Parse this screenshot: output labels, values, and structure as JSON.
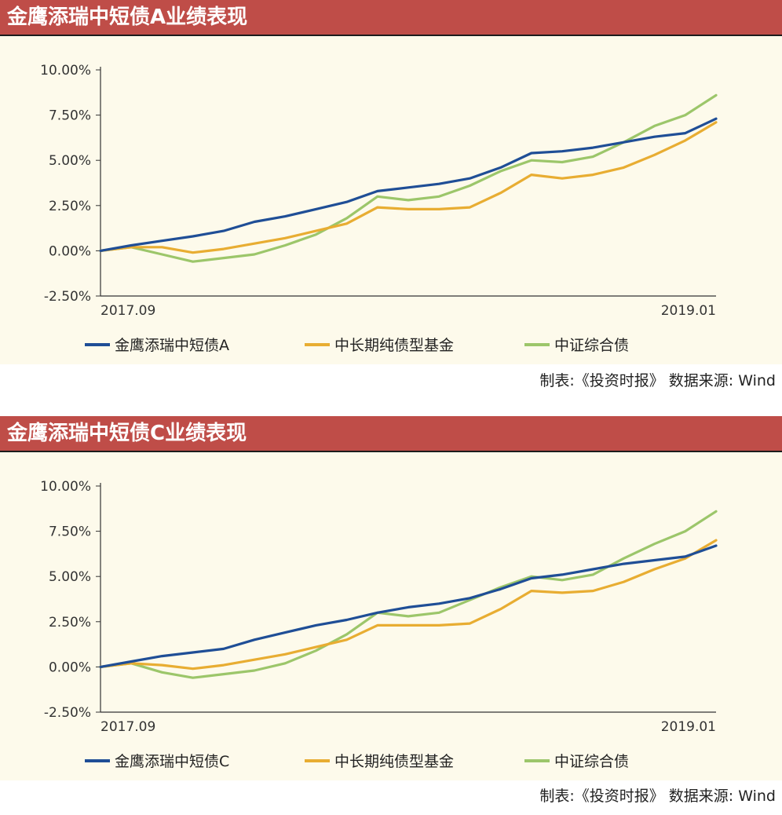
{
  "panels": [
    {
      "title": "金鹰添瑞中短债A业绩表现",
      "source": "制表:《投资时报》  数据来源: Wind",
      "chart_data": {
        "type": "line",
        "x_start_label": "2017.09",
        "x_end_label": "2019.01",
        "x": [
          0,
          5,
          10,
          15,
          20,
          25,
          30,
          35,
          40,
          45,
          50,
          55,
          60,
          65,
          70,
          75,
          80,
          85,
          90,
          95,
          100
        ],
        "y_ticks": [
          "10.00%",
          "7.50%",
          "5.00%",
          "2.50%",
          "0.00%",
          "-2.50%"
        ],
        "ylim": [
          -2.5,
          10
        ],
        "grid": false,
        "legend_position": "bottom",
        "series": [
          {
            "name": "金鹰添瑞中短债A",
            "color": "#1f4e96",
            "values": [
              0.0,
              0.3,
              0.55,
              0.8,
              1.1,
              1.6,
              1.9,
              2.3,
              2.7,
              3.3,
              3.5,
              3.7,
              4.0,
              4.6,
              5.4,
              5.5,
              5.7,
              6.0,
              6.3,
              6.5,
              7.3
            ]
          },
          {
            "name": "中长期纯债型基金",
            "color": "#e8ad32",
            "values": [
              0.0,
              0.2,
              0.2,
              -0.1,
              0.1,
              0.4,
              0.7,
              1.1,
              1.5,
              2.4,
              2.3,
              2.3,
              2.4,
              3.2,
              4.2,
              4.0,
              4.2,
              4.6,
              5.3,
              6.1,
              7.1
            ]
          },
          {
            "name": "中证综合债",
            "color": "#9cc66a",
            "values": [
              0.0,
              0.2,
              -0.2,
              -0.6,
              -0.4,
              -0.2,
              0.3,
              0.9,
              1.8,
              3.0,
              2.8,
              3.0,
              3.6,
              4.4,
              5.0,
              4.9,
              5.2,
              6.0,
              6.9,
              7.5,
              8.6
            ]
          }
        ]
      }
    },
    {
      "title": "金鹰添瑞中短债C业绩表现",
      "source": "制表:《投资时报》  数据来源: Wind",
      "chart_data": {
        "type": "line",
        "x_start_label": "2017.09",
        "x_end_label": "2019.01",
        "x": [
          0,
          5,
          10,
          15,
          20,
          25,
          30,
          35,
          40,
          45,
          50,
          55,
          60,
          65,
          70,
          75,
          80,
          85,
          90,
          95,
          100
        ],
        "y_ticks": [
          "10.00%",
          "7.50%",
          "5.00%",
          "2.50%",
          "0.00%",
          "-2.50%"
        ],
        "ylim": [
          -2.5,
          10
        ],
        "grid": false,
        "legend_position": "bottom",
        "series": [
          {
            "name": "金鹰添瑞中短债C",
            "color": "#1f4e96",
            "values": [
              0.0,
              0.3,
              0.6,
              0.8,
              1.0,
              1.5,
              1.9,
              2.3,
              2.6,
              3.0,
              3.3,
              3.5,
              3.8,
              4.3,
              4.9,
              5.1,
              5.4,
              5.7,
              5.9,
              6.1,
              6.7
            ]
          },
          {
            "name": "中长期纯债型基金",
            "color": "#e8ad32",
            "values": [
              0.0,
              0.2,
              0.1,
              -0.1,
              0.1,
              0.4,
              0.7,
              1.1,
              1.5,
              2.3,
              2.3,
              2.3,
              2.4,
              3.2,
              4.2,
              4.1,
              4.2,
              4.7,
              5.4,
              6.0,
              7.0
            ]
          },
          {
            "name": "中证综合债",
            "color": "#9cc66a",
            "values": [
              0.0,
              0.2,
              -0.3,
              -0.6,
              -0.4,
              -0.2,
              0.2,
              0.9,
              1.8,
              3.0,
              2.8,
              3.0,
              3.7,
              4.4,
              5.0,
              4.8,
              5.1,
              6.0,
              6.8,
              7.5,
              8.6
            ]
          }
        ]
      }
    }
  ]
}
